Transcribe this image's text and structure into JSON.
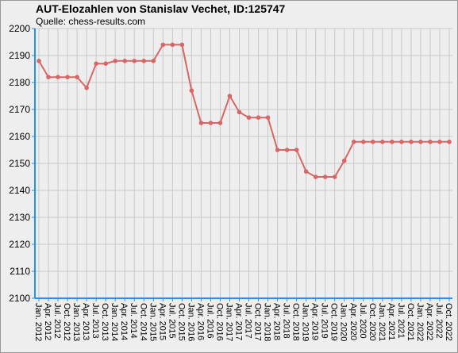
{
  "chart_data": {
    "type": "line",
    "title": "AUT-Elozahlen von Stanislav Vechet, ID:125747",
    "subtitle": "Quelle: chess-results.com",
    "categories": [
      "Jan. 2012",
      "Apr. 2012",
      "Jul. 2012",
      "Oct. 2012",
      "Jan. 2013",
      "Apr. 2013",
      "Jul. 2013",
      "Oct. 2013",
      "Jan. 2014",
      "Apr. 2014",
      "Jul. 2014",
      "Oct. 2014",
      "Jan. 2015",
      "Apr. 2015",
      "Jul. 2015",
      "Oct. 2015",
      "Jan. 2016",
      "Apr. 2016",
      "Jul. 2016",
      "Oct. 2016",
      "Jan. 2017",
      "Apr. 2017",
      "Jul. 2017",
      "Oct. 2017",
      "Jan. 2018",
      "Apr. 2018",
      "Jul. 2018",
      "Oct. 2018",
      "Jan. 2019",
      "Apr. 2019",
      "Jul. 2019",
      "Oct. 2019",
      "Jan. 2020",
      "Apr. 2020",
      "Jul. 2020",
      "Oct. 2020",
      "Jan. 2021",
      "Apr. 2021",
      "Jul. 2021",
      "Oct. 2021",
      "Jan. 2022",
      "Apr. 2022",
      "Jul. 2022",
      "Oct. 2022"
    ],
    "values": [
      2188,
      2182,
      2182,
      2182,
      2182,
      2178,
      2187,
      2187,
      2188,
      2188,
      2188,
      2188,
      2188,
      2194,
      2194,
      2194,
      2177,
      2165,
      2165,
      2165,
      2175,
      2169,
      2167,
      2167,
      2167,
      2155,
      2155,
      2155,
      2147,
      2145,
      2145,
      2145,
      2151,
      2158,
      2158,
      2158,
      2158,
      2158,
      2158,
      2158,
      2158,
      2158,
      2158,
      2158
    ],
    "color": "#d96666",
    "ylim": [
      2100,
      2200
    ],
    "yticks": [
      2100,
      2110,
      2120,
      2130,
      2140,
      2150,
      2160,
      2170,
      2180,
      2190,
      2200
    ],
    "grid": true
  }
}
